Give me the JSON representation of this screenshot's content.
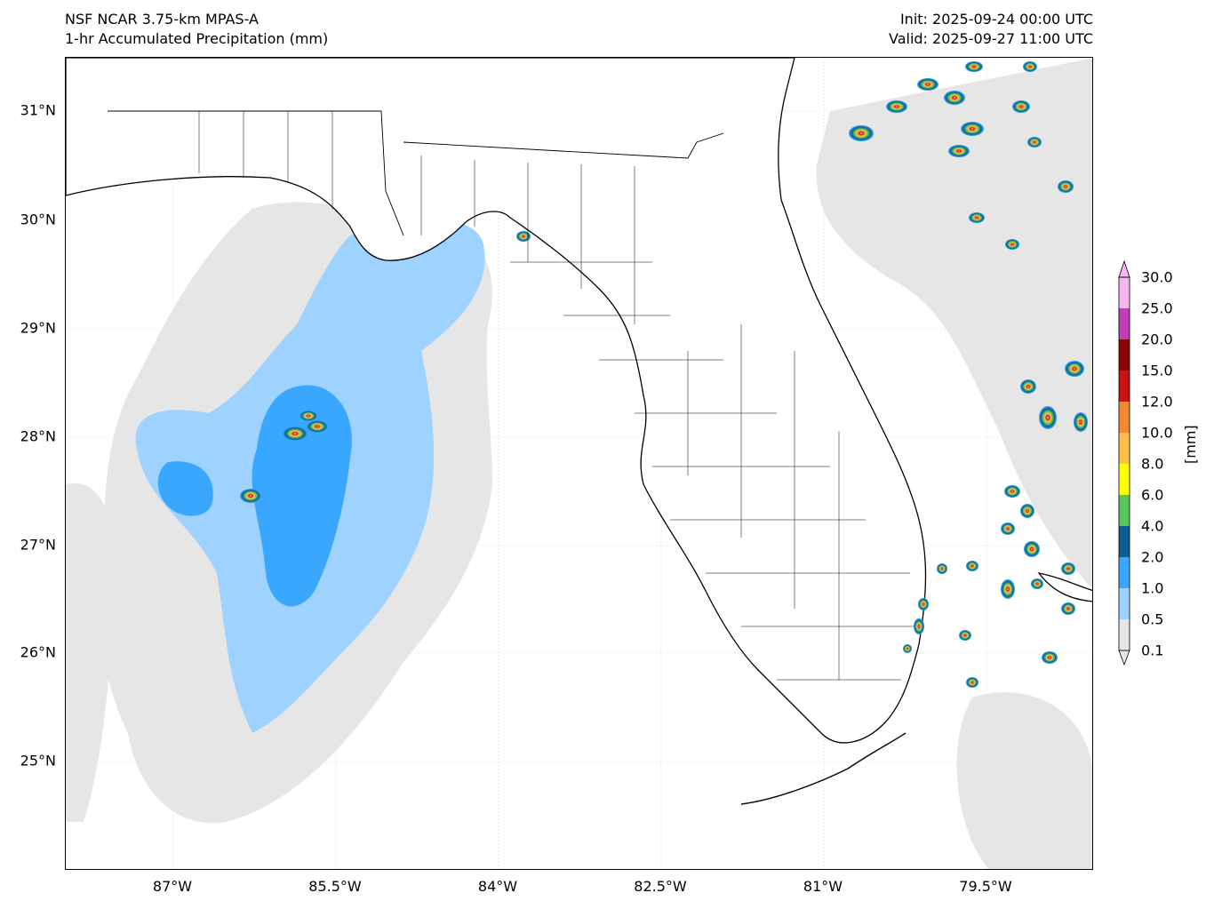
{
  "header": {
    "model": "NSF NCAR 3.75-km MPAS-A",
    "field": "1-hr Accumulated Precipitation (mm)",
    "init": "Init: 2025-09-24 00:00 UTC",
    "valid": "Valid: 2025-09-27 11:00 UTC"
  },
  "axes": {
    "lat_ticks": [
      "31°N",
      "30°N",
      "29°N",
      "28°N",
      "27°N",
      "26°N",
      "25°N"
    ],
    "lon_ticks": [
      "87°W",
      "85.5°W",
      "84°W",
      "82.5°W",
      "81°W",
      "79.5°W"
    ]
  },
  "colorbar": {
    "unit": "[mm]",
    "levels": [
      "0.1",
      "0.5",
      "1.0",
      "2.0",
      "4.0",
      "6.0",
      "8.0",
      "10.0",
      "12.0",
      "15.0",
      "20.0",
      "25.0",
      "30.0"
    ],
    "colors": [
      "#e6e6e6",
      "#9fd3ff",
      "#3aa7ff",
      "#0b5f91",
      "#55c65a",
      "#ffff00",
      "#ffc04a",
      "#f18a30",
      "#cc1111",
      "#8b0000",
      "#c23db8",
      "#f6b6f0"
    ]
  }
}
